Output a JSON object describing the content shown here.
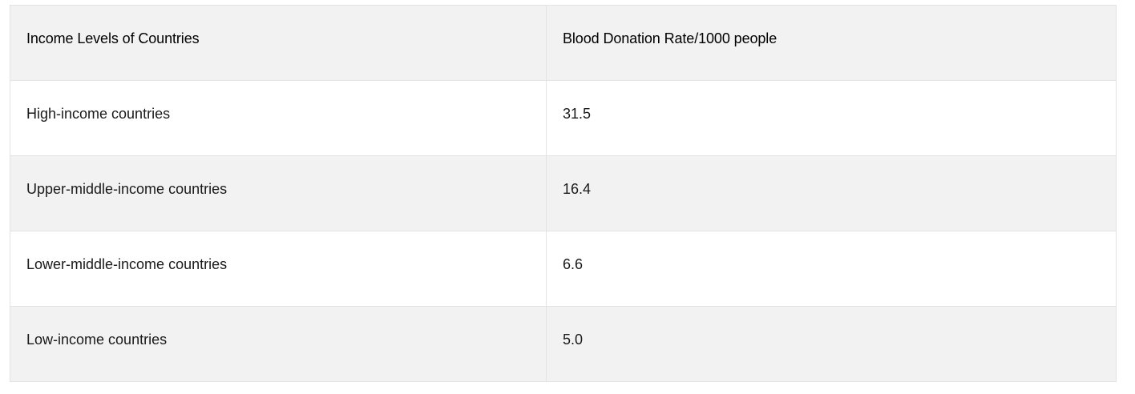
{
  "table": {
    "headers": [
      "Income Levels of Countries",
      "Blood Donation Rate/1000 people"
    ],
    "rows": [
      [
        "High-income countries",
        "31.5"
      ],
      [
        "Upper-middle-income countries",
        "16.4"
      ],
      [
        "Lower-middle-income countries",
        "6.6"
      ],
      [
        "Low-income countries",
        "5.0"
      ]
    ]
  }
}
